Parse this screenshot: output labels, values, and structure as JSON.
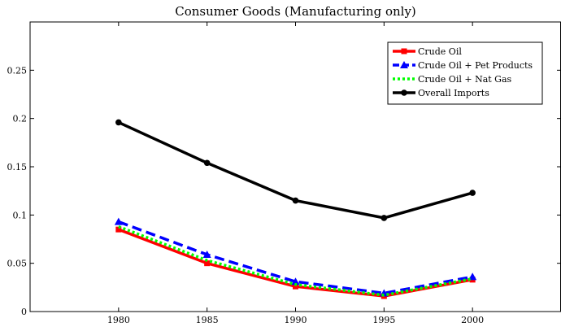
{
  "chart_data": {
    "type": "line",
    "title": "Consumer Goods (Manufacturing only)",
    "xlabel": "",
    "ylabel": "",
    "x": [
      1980,
      1985,
      1990,
      1995,
      2000
    ],
    "xlim": [
      1975,
      2005
    ],
    "ylim": [
      0,
      0.3
    ],
    "xticks": [
      1980,
      1985,
      1990,
      1995,
      2000
    ],
    "yticks": [
      0,
      0.05,
      0.1,
      0.15,
      0.2,
      0.25
    ],
    "ytick_labels": [
      "0",
      "0.05",
      "0.1",
      "0.15",
      "0.2",
      "0.25"
    ],
    "grid": false,
    "legend_position": "top-right",
    "series": [
      {
        "name": "Crude Oil",
        "values": [
          0.085,
          0.05,
          0.026,
          0.016,
          0.033
        ],
        "color": "#ff0000",
        "dash": "solid",
        "marker": "square"
      },
      {
        "name": "Crude Oil + Pet Products",
        "values": [
          0.093,
          0.059,
          0.031,
          0.019,
          0.036
        ],
        "color": "#0000ff",
        "dash": "dashed",
        "marker": "triangle"
      },
      {
        "name": "Crude Oil + Nat Gas",
        "values": [
          0.088,
          0.053,
          0.028,
          0.017,
          0.034
        ],
        "color": "#00ff00",
        "dash": "dotted",
        "marker": "none"
      },
      {
        "name": "Overall Imports",
        "values": [
          0.196,
          0.154,
          0.115,
          0.097,
          0.123
        ],
        "color": "#000000",
        "dash": "solid",
        "marker": "circle"
      }
    ]
  }
}
